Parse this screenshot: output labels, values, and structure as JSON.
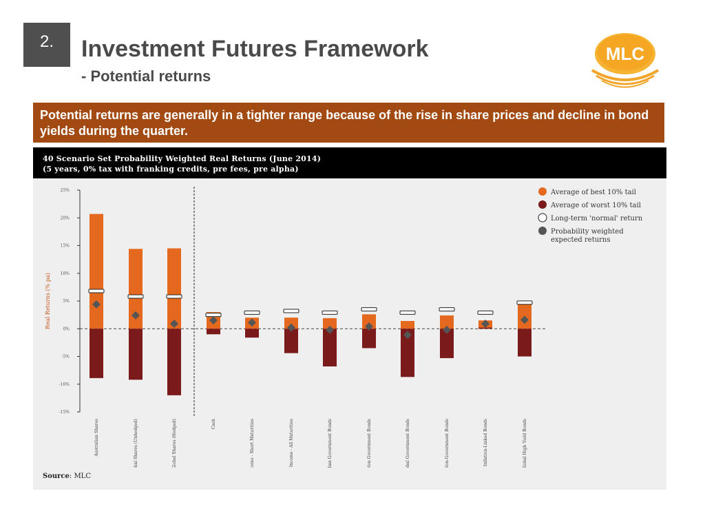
{
  "header": {
    "section_number": "2.",
    "title": "Investment Futures Framework",
    "subtitle": "- Potential returns",
    "logo_text": "MLC"
  },
  "banner": {
    "text": "Potential returns are generally in a tighter range because of the rise in share prices and decline in bond yields during the quarter."
  },
  "figure": {
    "title_line1": "40 Scenario Set Probability Weighted Real Returns (June 2014)",
    "title_line2": "(5 years, 0% tax with franking credits, pre fees, pre alpha)",
    "source_label": "Source",
    "source_value": ": MLC"
  },
  "colors": {
    "best_tail": "#e4691f",
    "worst_tail": "#7a1a1a",
    "banner": "#a24a12",
    "marker": "#555555",
    "logo": "#f2a52b"
  },
  "chart_data": {
    "type": "bar",
    "ylabel": "Real Returns (% pa)",
    "ylim": [
      -15,
      25
    ],
    "yticks": [
      "25%",
      "20%",
      "15%",
      "10%",
      "5%",
      "0%",
      "-5%",
      "-10%",
      "-15%"
    ],
    "categories": [
      "Australian Shares",
      "Global Shares (Unhedged)",
      "Global Shares (Hedged)",
      "Cash",
      "Fixed Income - Short Maturities",
      "Fixed Income - All Maturities",
      "Australian Government Bonds",
      "Australian Non Government Bonds",
      "Global Government Bonds",
      "Global Non-Government Bonds",
      "Australian Inflation-Linked Bonds",
      "Global High Yield Bonds"
    ],
    "series": [
      {
        "name": "Average of best 10% tail",
        "values": [
          20.7,
          14.4,
          14.5,
          3.0,
          2.0,
          2.0,
          1.9,
          2.6,
          1.4,
          2.4,
          1.5,
          4.4
        ]
      },
      {
        "name": "Average of worst 10% tail",
        "values": [
          -8.9,
          -9.2,
          -12.0,
          -1.0,
          -1.6,
          -4.4,
          -6.8,
          -3.5,
          -8.7,
          -5.3,
          0.2,
          -5.0
        ]
      },
      {
        "name": "Long-term 'normal' return",
        "values": [
          6.8,
          5.8,
          5.8,
          2.5,
          2.9,
          3.2,
          2.9,
          3.5,
          2.9,
          3.5,
          2.9,
          4.7
        ]
      },
      {
        "name": "Probability weighted expected returns",
        "values": [
          4.4,
          2.4,
          0.9,
          1.5,
          1.1,
          0.2,
          -0.2,
          0.4,
          -1.1,
          -0.2,
          0.9,
          1.6
        ]
      }
    ],
    "legend_position": "top-right",
    "grid": false
  }
}
